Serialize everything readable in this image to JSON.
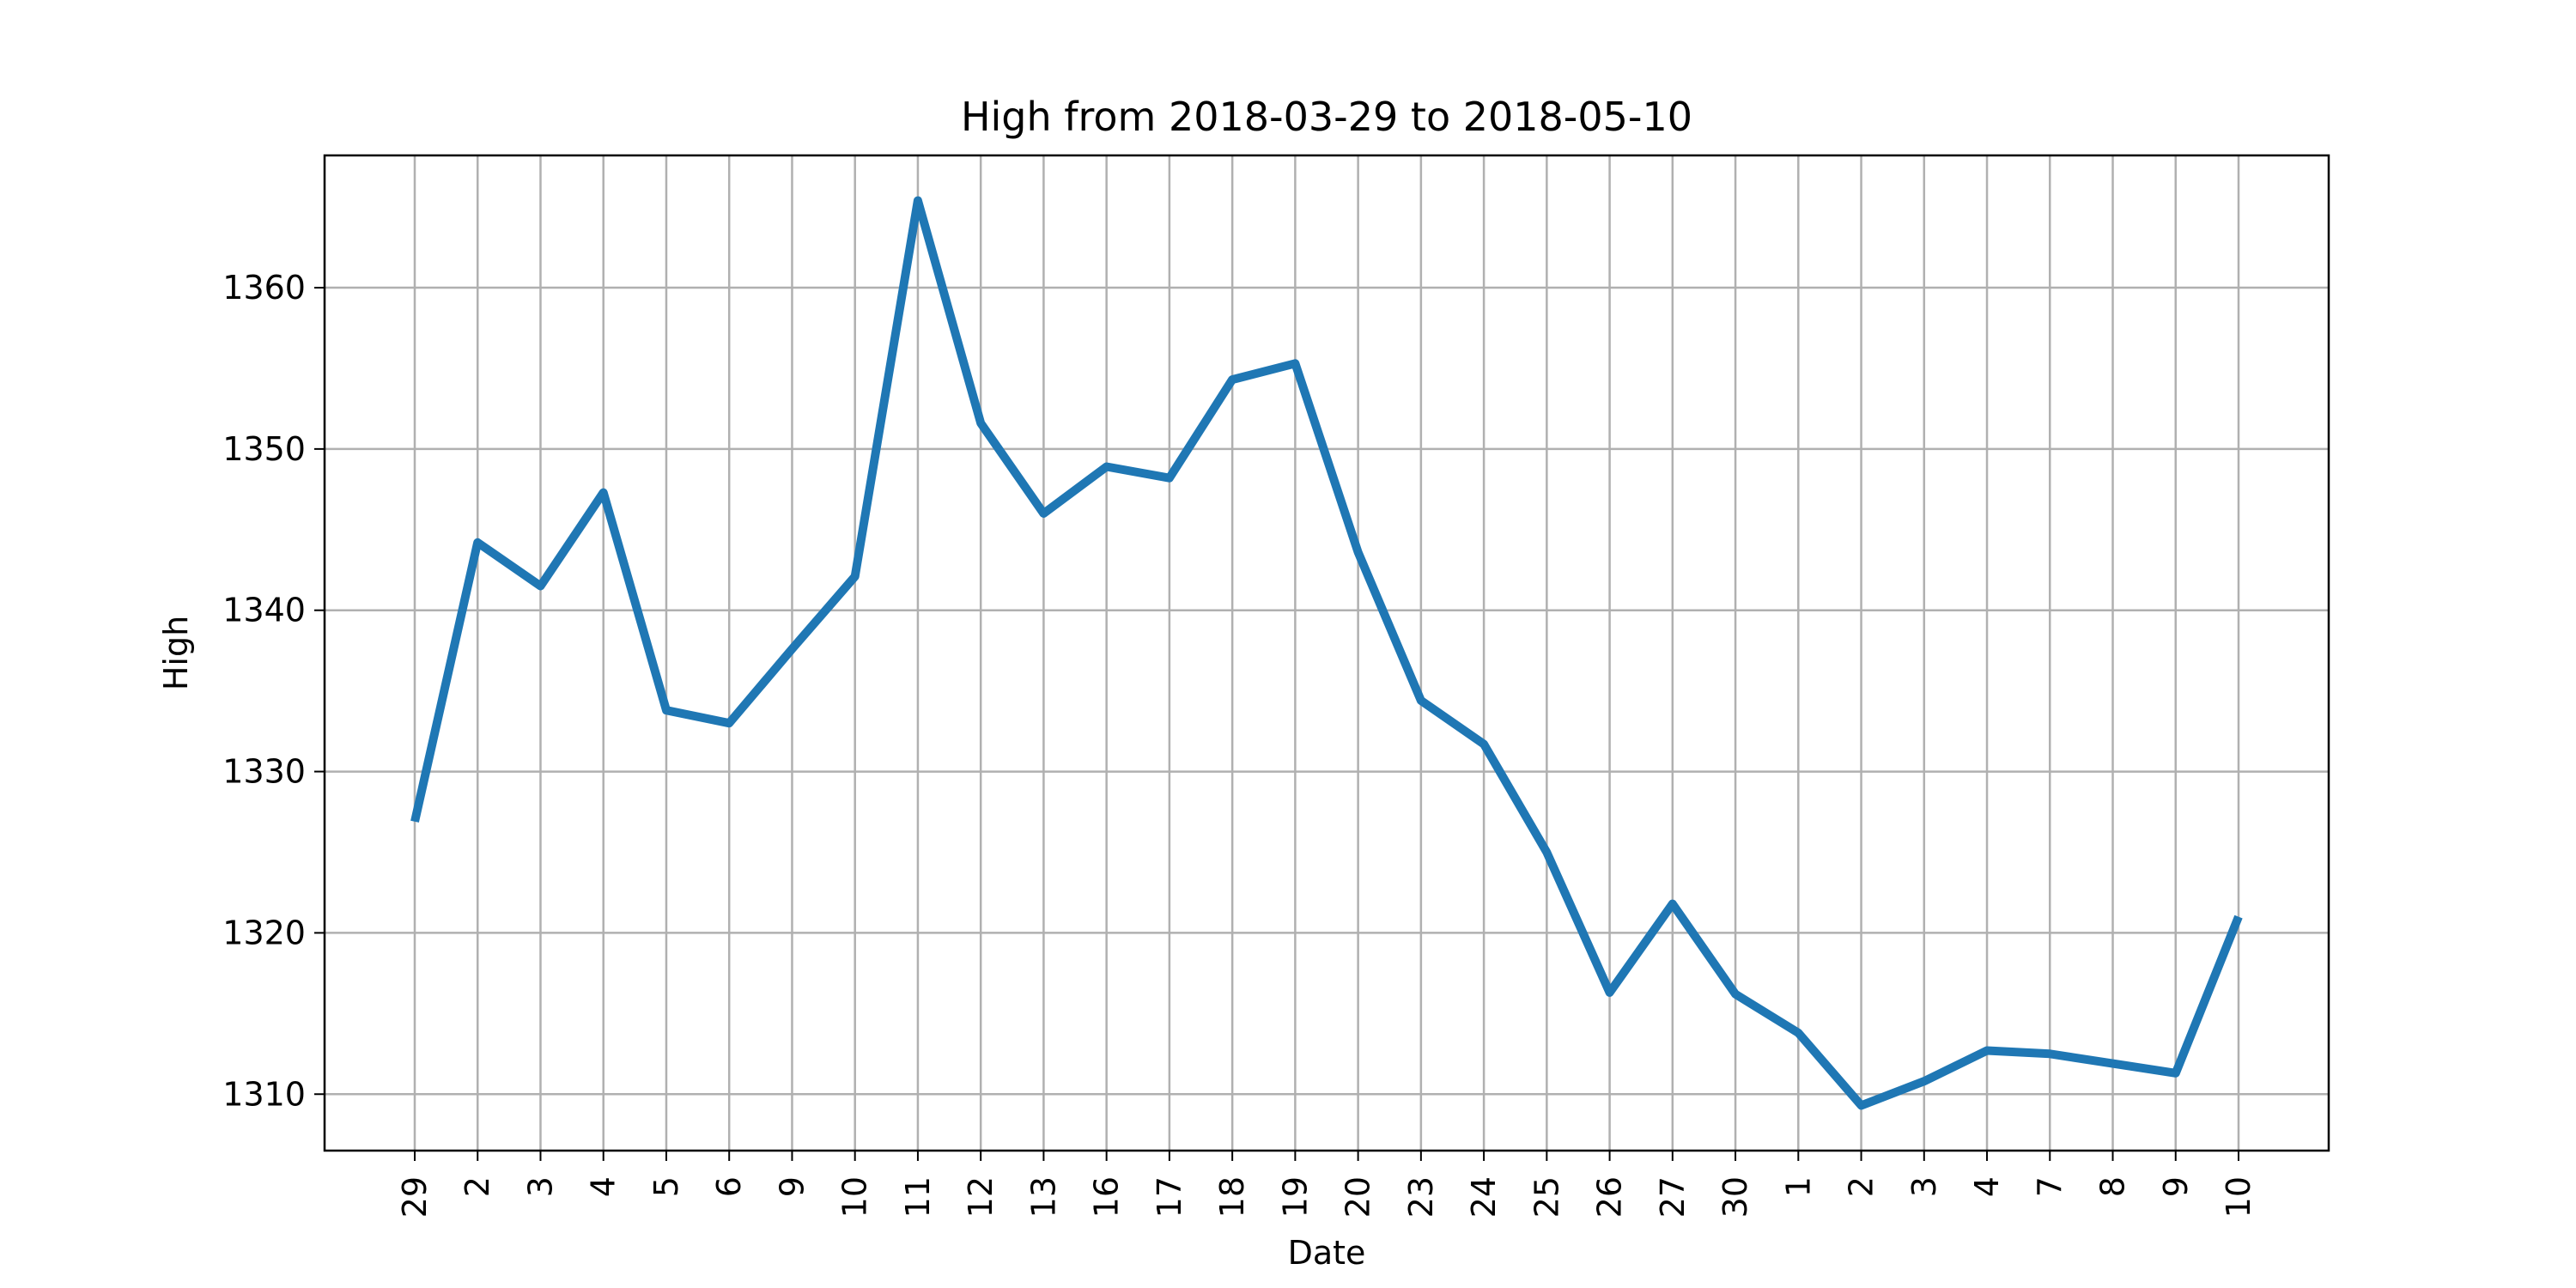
{
  "chart_data": {
    "type": "line",
    "title": "High from 2018-03-29 to 2018-05-10",
    "xlabel": "Date",
    "ylabel": "High",
    "grid": true,
    "ylim": [
      1306.5,
      1368.2
    ],
    "yticks": [
      1310,
      1320,
      1330,
      1340,
      1350,
      1360
    ],
    "categories": [
      "29",
      "2",
      "3",
      "4",
      "5",
      "6",
      "9",
      "10",
      "11",
      "12",
      "13",
      "16",
      "17",
      "18",
      "19",
      "20",
      "23",
      "24",
      "25",
      "26",
      "27",
      "30",
      "1",
      "2",
      "3",
      "4",
      "7",
      "8",
      "9",
      "10"
    ],
    "dates": [
      "2018-03-29",
      "2018-04-02",
      "2018-04-03",
      "2018-04-04",
      "2018-04-05",
      "2018-04-06",
      "2018-04-09",
      "2018-04-10",
      "2018-04-11",
      "2018-04-12",
      "2018-04-13",
      "2018-04-16",
      "2018-04-17",
      "2018-04-18",
      "2018-04-19",
      "2018-04-20",
      "2018-04-23",
      "2018-04-24",
      "2018-04-25",
      "2018-04-26",
      "2018-04-27",
      "2018-04-30",
      "2018-05-01",
      "2018-05-02",
      "2018-05-03",
      "2018-05-04",
      "2018-05-07",
      "2018-05-08",
      "2018-05-09",
      "2018-05-10"
    ],
    "series": [
      {
        "color": "#1f77b4",
        "values": [
          1326.9,
          1344.2,
          1341.5,
          1347.3,
          1333.8,
          1333.0,
          1337.6,
          1342.1,
          1365.4,
          1351.6,
          1346.0,
          1348.9,
          1348.2,
          1354.3,
          1355.3,
          1343.6,
          1334.4,
          1331.7,
          1325.0,
          1316.3,
          1321.8,
          1316.2,
          1313.8,
          1309.3,
          1310.8,
          1312.7,
          1312.5,
          1311.9,
          1311.3,
          1321.0
        ]
      }
    ]
  }
}
